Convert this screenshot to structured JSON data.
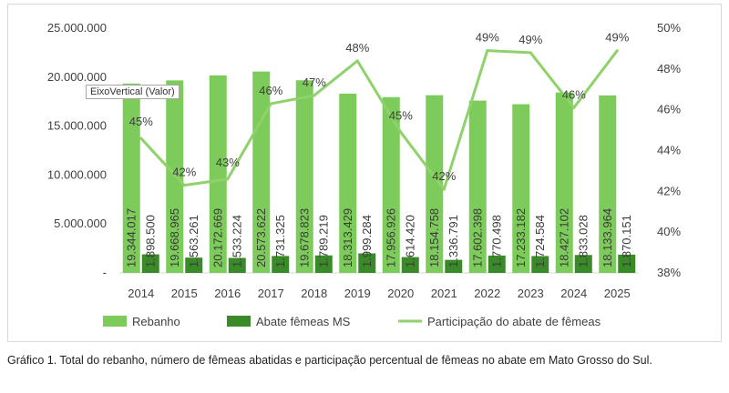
{
  "chart_data": {
    "type": "bar",
    "categories": [
      "2014",
      "2015",
      "2016",
      "2017",
      "2018",
      "2019",
      "2020",
      "2021",
      "2022",
      "2023",
      "2024",
      "2025"
    ],
    "series": [
      {
        "name": "Rebanho",
        "kind": "bar",
        "axis": "left",
        "color": "#7dcb5a",
        "values": [
          19344017,
          19668965,
          20172669,
          20573622,
          19678823,
          18313429,
          17956926,
          18154758,
          17602398,
          17233182,
          18427102,
          18133964
        ],
        "labels": [
          "19.344.017",
          "19.668.965",
          "20.172.669",
          "20.573.622",
          "19.678.823",
          "18.313.429",
          "17.956.926",
          "18.154.758",
          "17.602.398",
          "17.233.182",
          "18.427.102",
          "18.133.964"
        ]
      },
      {
        "name": "Abate fêmeas MS",
        "kind": "bar",
        "axis": "left",
        "color": "#3b8a2a",
        "values": [
          1898500,
          1563261,
          1533224,
          1731325,
          1789219,
          1999284,
          1614420,
          1336791,
          1770498,
          1724584,
          1833028,
          1870151
        ],
        "labels": [
          "1.898.500",
          "1.563.261",
          "1.533.224",
          "1.731.325",
          "1.789.219",
          "1.999.284",
          "1.614.420",
          "1.336.791",
          "1.770.498",
          "1.724.584",
          "1.833.028",
          "1.870.151"
        ]
      },
      {
        "name": "Participação do abate de fêmeas",
        "kind": "line",
        "axis": "right",
        "color": "#8fd16a",
        "values": [
          44.6,
          42.3,
          42.6,
          46.3,
          46.7,
          48.4,
          44.9,
          42.1,
          48.9,
          48.8,
          46.1,
          48.9
        ],
        "labels": [
          "45%",
          "42%",
          "43%",
          "46%",
          "47%",
          "48%",
          "45%",
          "42%",
          "49%",
          "49%",
          "46%",
          "49%"
        ]
      }
    ],
    "y_left": {
      "min": 0,
      "max": 25000000,
      "ticks": [
        0,
        5000000,
        10000000,
        15000000,
        20000000,
        25000000
      ],
      "tick_labels": [
        "-",
        "5.000.000",
        "10.000.000",
        "15.000.000",
        "20.000.000",
        "25.000.000"
      ]
    },
    "y_right": {
      "min": 38,
      "max": 50,
      "ticks": [
        38,
        40,
        42,
        44,
        46,
        48,
        50
      ],
      "tick_labels": [
        "38%",
        "40%",
        "42%",
        "44%",
        "46%",
        "48%",
        "50%"
      ]
    },
    "grid": false,
    "legend_position": "bottom"
  },
  "tooltip_text": "EixoVertical (Valor)",
  "caption": "Gráfico 1. Total do rebanho, número de fêmeas abatidas e participação percentual de fêmeas no abate em Mato Grosso do Sul."
}
